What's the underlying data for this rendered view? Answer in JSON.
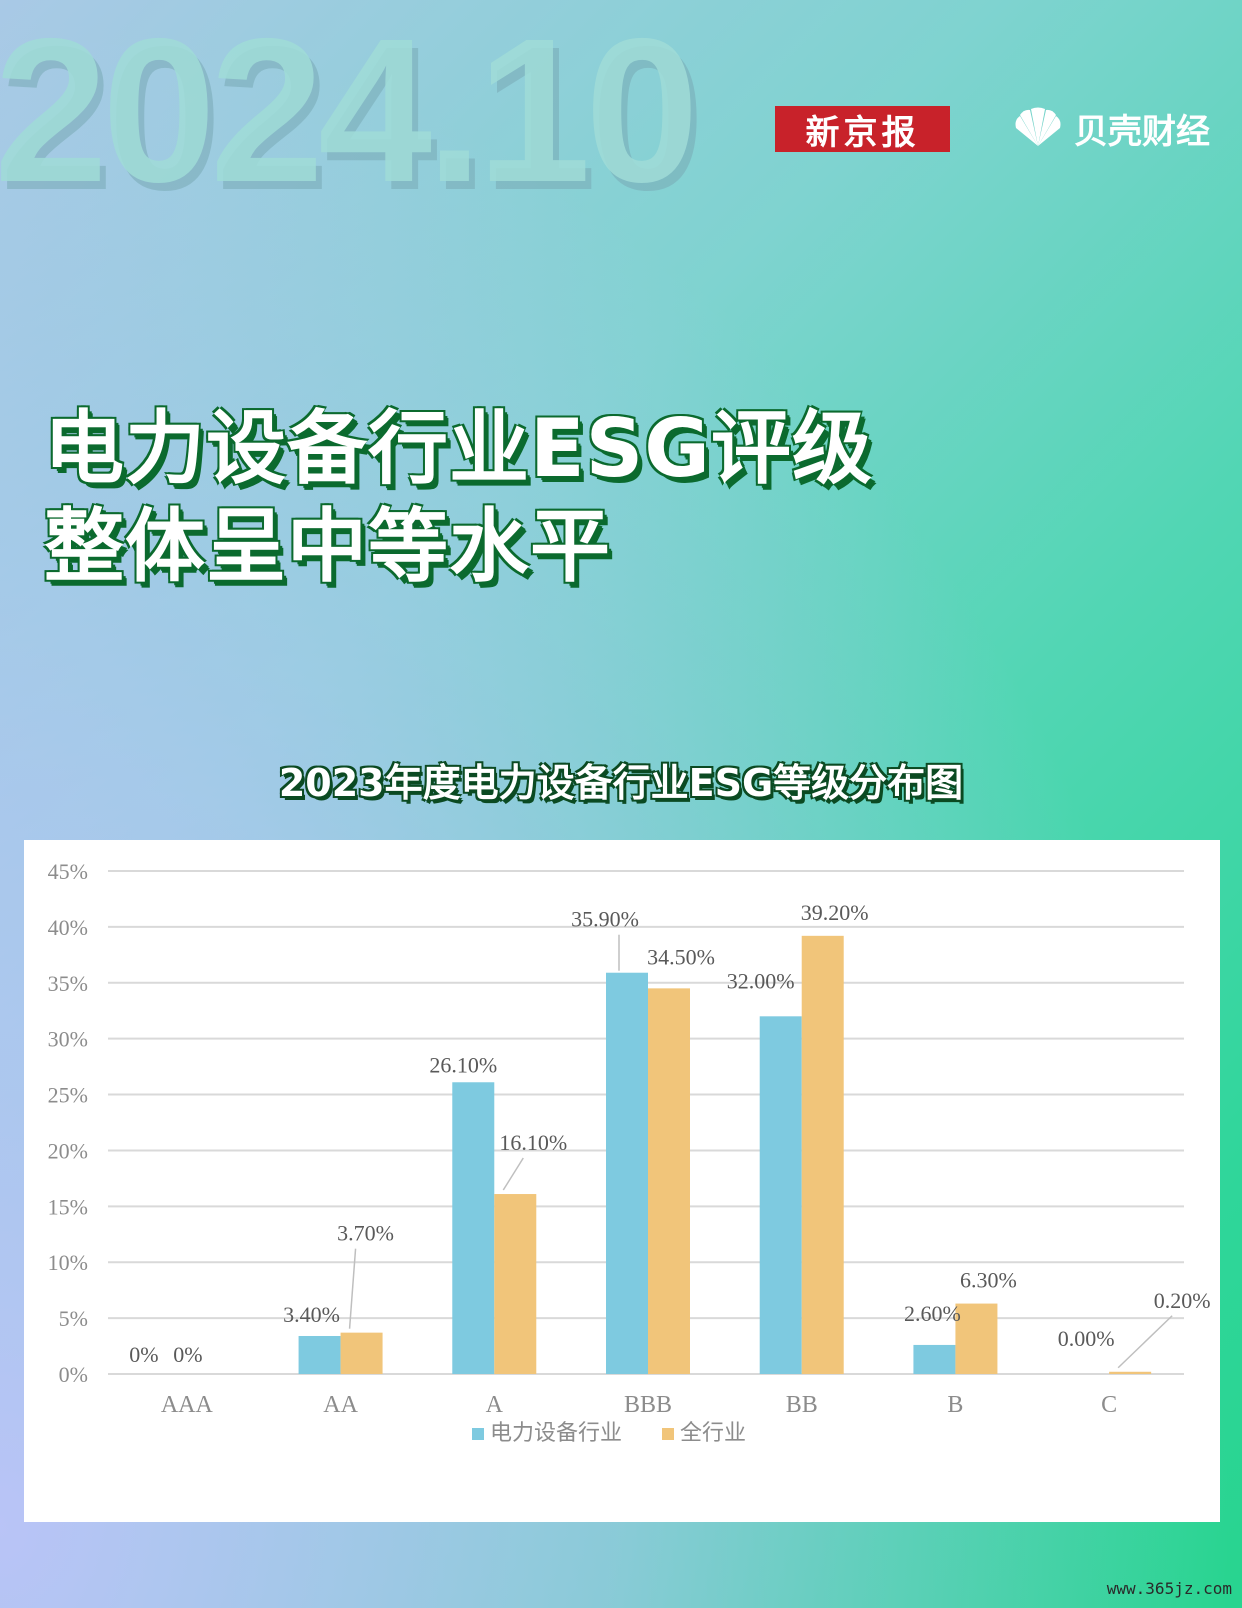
{
  "header": {
    "date": "2024.10",
    "brand_xjb": "新京报",
    "brand_bk": "贝壳财经"
  },
  "headline": {
    "line1": "电力设备行业ESG评级",
    "line2": "整体呈中等水平"
  },
  "chart_heading": "2023年度电力设备行业ESG等级分布图",
  "footer": {
    "watermark": "www.365jz.com"
  },
  "colors": {
    "series1": "#7ecae0",
    "series2": "#f1c57a",
    "grid": "#d9d9d9",
    "axis_text": "#8c8c8c",
    "label_text": "#595959"
  },
  "chart_data": {
    "type": "bar",
    "title": "2023年度电力设备行业ESG等级分布图",
    "categories": [
      "AAA",
      "AA",
      "A",
      "BBB",
      "BB",
      "B",
      "C"
    ],
    "series": [
      {
        "name": "电力设备行业",
        "values": [
          0,
          3.4,
          26.1,
          35.9,
          32.0,
          2.6,
          0.0
        ],
        "labels": [
          "0%",
          "3.40%",
          "26.10%",
          "35.90%",
          "32.00%",
          "2.60%",
          "0.00%"
        ]
      },
      {
        "name": "全行业",
        "values": [
          0,
          3.7,
          16.1,
          34.5,
          39.2,
          6.3,
          0.2
        ],
        "labels": [
          "0%",
          "3.70%",
          "16.10%",
          "34.50%",
          "39.20%",
          "6.30%",
          "0.20%"
        ]
      }
    ],
    "yticks": [
      "0%",
      "5%",
      "10%",
      "15%",
      "20%",
      "25%",
      "30%",
      "35%",
      "40%",
      "45%"
    ],
    "ylim": [
      0,
      45
    ],
    "grid": true,
    "legend": "bottom-center"
  }
}
